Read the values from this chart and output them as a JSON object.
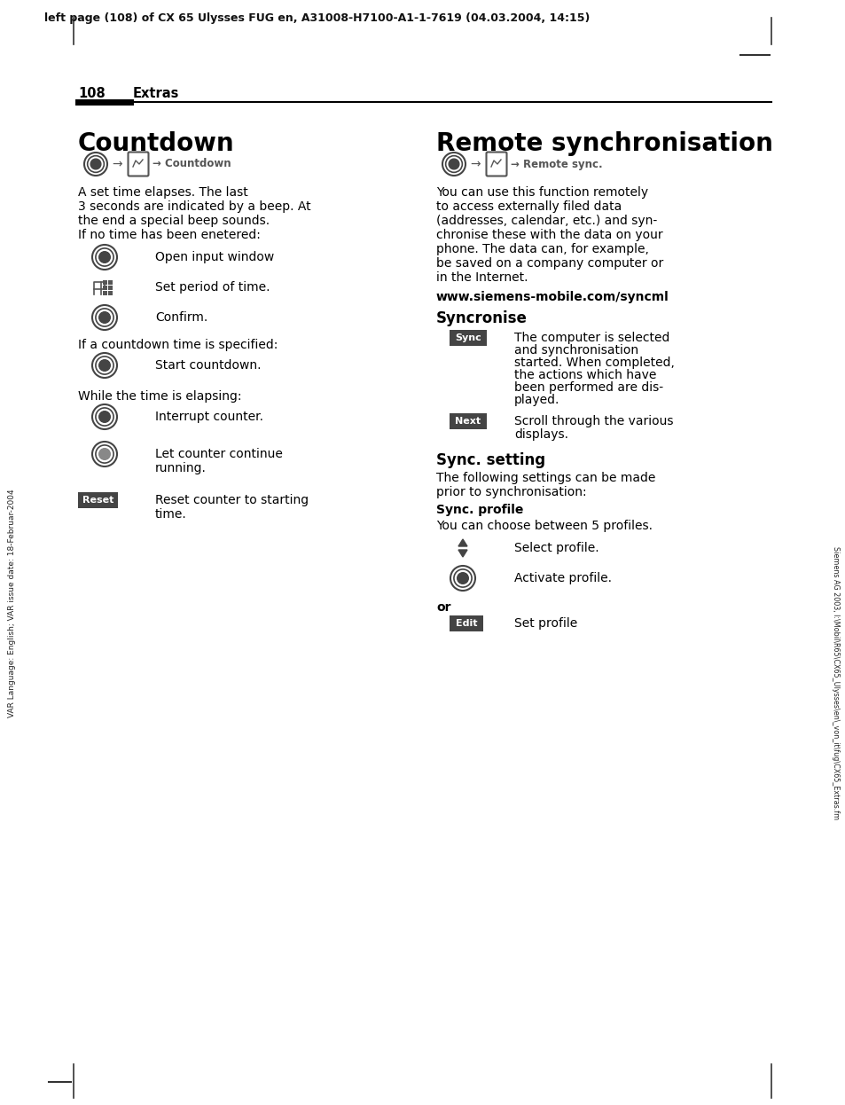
{
  "header_text": "left page (108) of CX 65 Ulysses FUG en, A31008-H7100-A1-1-7619 (04.03.2004, 14:15)",
  "page_num": "108",
  "section": "Extras",
  "left_title": "Countdown",
  "right_title": "Remote synchronisation",
  "left_body": [
    "A set time elapses. The last",
    "3 seconds are indicated by a beep. At",
    "the end a special beep sounds.",
    "If no time has been enetered:"
  ],
  "left_body2": "If a countdown time is specified:",
  "left_body3": "While the time is elapsing:",
  "right_body": [
    "You can use this function remotely",
    "to access externally filed data",
    "(addresses, calendar, etc.) and syn-",
    "chronise these with the data on your",
    "phone. The data can, for example,",
    "be saved on a company computer or",
    "in the Internet."
  ],
  "right_url": "www.siemens-mobile.com/syncml",
  "right_sub1": "Syncronise",
  "sync_text": "The computer is selected\nand synchronisation\nstarted. When completed,\nthe actions which have\nbeen performed are dis-\nplayed.",
  "next_text": "Scroll through the various\ndisplays.",
  "right_sub2": "Sync. setting",
  "right_body2": [
    "The following settings can be made",
    "prior to synchronisation:"
  ],
  "right_sub3": "Sync. profile",
  "right_body3": "You can choose between 5 profiles.",
  "right_or": "or",
  "right_edit_text": "Set profile",
  "sidebar_text": "VAR Language: English; VAR issue date: 18-Februar-2004",
  "right_sidebar": "Siemens AG 2003, I:\\Mobil\\R65\\CX65_Ulysses\\en\\_von_it\\fug\\CX65_Extras.fm",
  "bg_color": "#ffffff",
  "text_color": "#000000"
}
